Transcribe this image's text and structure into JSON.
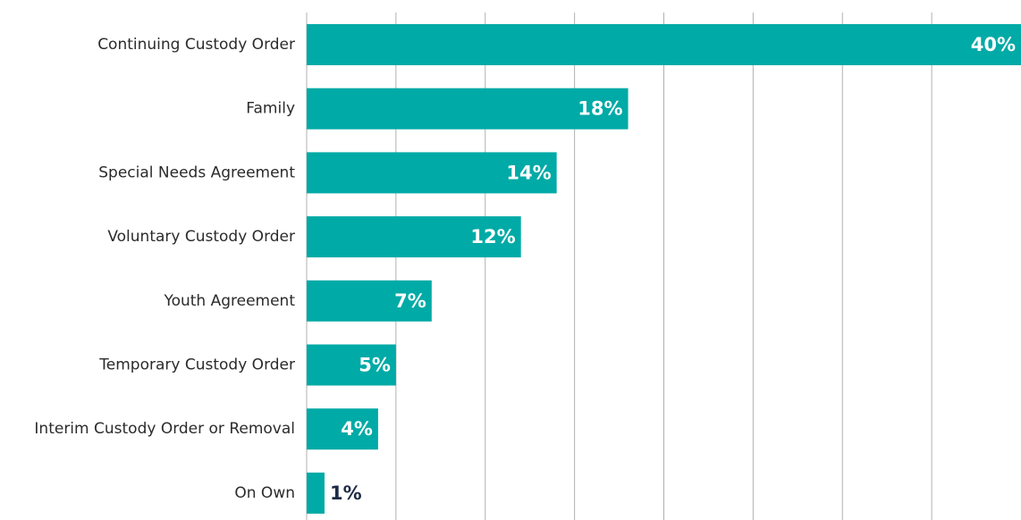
{
  "chart_data": {
    "type": "bar",
    "orientation": "horizontal",
    "categories": [
      "Continuing Custody Order",
      "Family",
      "Special Needs Agreement",
      "Voluntary Custody Order",
      "Youth Agreement",
      "Temporary Custody Order",
      "Interim Custody Order or Removal",
      "On Own"
    ],
    "values": [
      40,
      18,
      14,
      12,
      7,
      5,
      4,
      1
    ],
    "value_labels": [
      "40%",
      "18%",
      "14%",
      "12%",
      "7%",
      "5%",
      "4%",
      "1%"
    ],
    "color": "#00aaa6",
    "xlim": [
      0,
      40
    ],
    "xticks": [
      0,
      5,
      10,
      15,
      20,
      25,
      30,
      35
    ],
    "grid": true
  }
}
